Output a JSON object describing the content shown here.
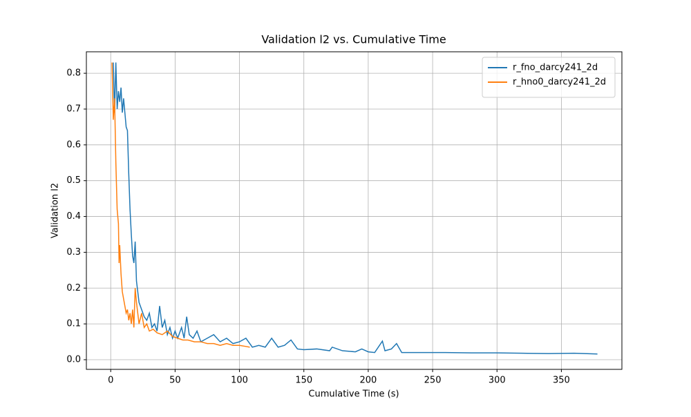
{
  "chart_data": {
    "type": "line",
    "title": "Validation l2 vs. Cumulative Time",
    "xlabel": "Cumulative Time (s)",
    "ylabel": "Validation l2",
    "xlim": [
      -18.9,
      397
    ],
    "xticks": [
      0,
      50,
      100,
      150,
      200,
      250,
      300,
      350
    ],
    "ylim": [
      -0.027,
      0.86
    ],
    "yticks": [
      {
        "value": 0,
        "label": "0.0"
      },
      0.1,
      0.2,
      0.3,
      0.4,
      0.5,
      0.6,
      0.7,
      0.8
    ],
    "grid": true,
    "legend": "upper right",
    "series": [
      {
        "name": "r_fno_darcy241_2d",
        "color": "#1f77b4",
        "x": [
          2,
          3,
          4,
          5,
          6,
          7,
          8,
          9,
          10,
          11,
          12,
          13,
          14,
          15,
          16,
          17,
          18,
          19,
          20,
          21,
          22,
          24,
          26,
          28,
          30,
          32,
          34,
          36,
          38,
          40,
          42,
          44,
          46,
          48,
          50,
          52,
          55,
          57,
          59,
          61,
          64,
          67,
          70,
          75,
          80,
          85,
          90,
          95,
          100,
          105,
          110,
          115,
          120,
          125,
          130,
          135,
          140,
          145,
          150,
          160,
          170,
          172,
          180,
          190,
          195,
          200,
          205,
          211,
          213,
          218,
          222,
          226,
          240,
          260,
          280,
          300,
          320,
          340,
          360,
          378
        ],
        "values": [
          0.83,
          0.69,
          0.83,
          0.7,
          0.75,
          0.72,
          0.76,
          0.69,
          0.73,
          0.69,
          0.65,
          0.64,
          0.52,
          0.42,
          0.35,
          0.29,
          0.27,
          0.33,
          0.22,
          0.19,
          0.16,
          0.14,
          0.12,
          0.11,
          0.13,
          0.09,
          0.1,
          0.08,
          0.15,
          0.09,
          0.11,
          0.07,
          0.09,
          0.06,
          0.08,
          0.06,
          0.09,
          0.06,
          0.12,
          0.07,
          0.06,
          0.08,
          0.05,
          0.06,
          0.07,
          0.05,
          0.06,
          0.045,
          0.05,
          0.06,
          0.035,
          0.04,
          0.035,
          0.06,
          0.035,
          0.04,
          0.055,
          0.03,
          0.028,
          0.03,
          0.025,
          0.035,
          0.025,
          0.022,
          0.03,
          0.022,
          0.02,
          0.052,
          0.025,
          0.03,
          0.045,
          0.02,
          0.02,
          0.02,
          0.019,
          0.019,
          0.018,
          0.017,
          0.018,
          0.016
        ]
      },
      {
        "name": "r_hno0_darcy241_2d",
        "color": "#ff7f0e",
        "x": [
          1,
          2,
          3,
          4,
          5,
          6,
          6.5,
          7,
          8,
          9,
          10,
          11,
          12,
          13,
          14,
          15,
          16,
          17,
          18,
          19,
          20,
          22,
          24,
          26,
          28,
          30,
          33,
          36,
          40,
          44,
          48,
          52,
          56,
          60,
          65,
          70,
          75,
          80,
          85,
          90,
          95,
          100,
          105,
          108
        ],
        "values": [
          0.83,
          0.67,
          0.73,
          0.55,
          0.42,
          0.38,
          0.27,
          0.32,
          0.24,
          0.19,
          0.17,
          0.15,
          0.13,
          0.14,
          0.11,
          0.13,
          0.1,
          0.14,
          0.09,
          0.2,
          0.16,
          0.1,
          0.13,
          0.09,
          0.1,
          0.08,
          0.085,
          0.075,
          0.07,
          0.08,
          0.065,
          0.06,
          0.055,
          0.055,
          0.05,
          0.05,
          0.045,
          0.045,
          0.04,
          0.045,
          0.04,
          0.04,
          0.037,
          0.035
        ]
      }
    ]
  }
}
